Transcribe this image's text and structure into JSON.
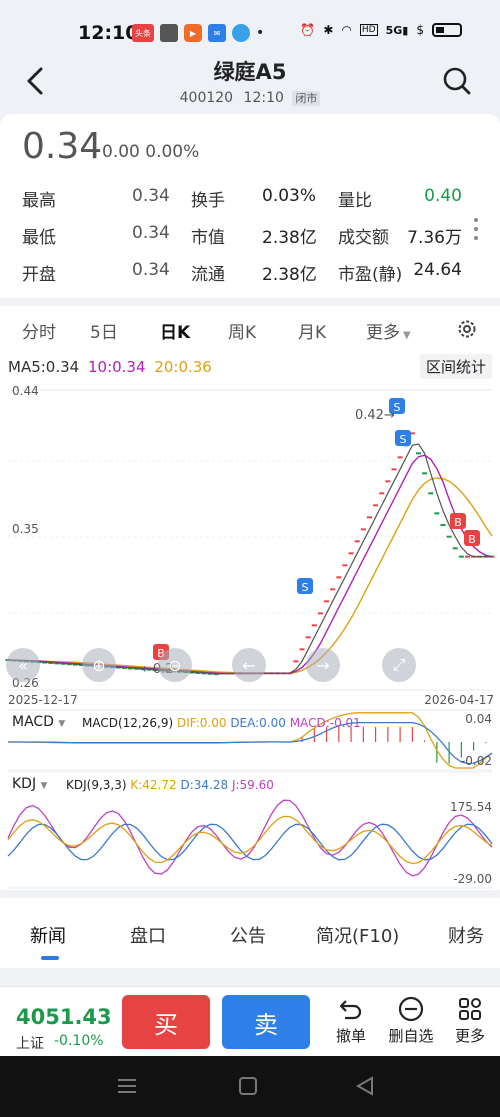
{
  "status": {
    "time": "12:10",
    "icons": [
      "toutiao-icon",
      "game-icon",
      "video-icon",
      "mail-icon",
      "app-icon"
    ],
    "right_icons": [
      "alarm-icon",
      "bluetooth-icon",
      "wifi-icon",
      "hd-icon",
      "5g-icon",
      "dollar-icon",
      "battery-icon"
    ]
  },
  "header": {
    "title": "绿庭A5",
    "code": "400120",
    "time": "12:10",
    "market_status": "闭市"
  },
  "quote": {
    "price": "0.34",
    "change": "0.00 0.00%",
    "stats": [
      [
        {
          "k": "最高",
          "v": "0.34"
        },
        {
          "k": "换手",
          "v": "0.03%"
        },
        {
          "k": "量比",
          "v": "0.40",
          "color": "#1a9a4a"
        }
      ],
      [
        {
          "k": "最低",
          "v": "0.34"
        },
        {
          "k": "市值",
          "v": "2.38亿"
        },
        {
          "k": "成交额",
          "v": "7.36万"
        }
      ],
      [
        {
          "k": "开盘",
          "v": "0.34"
        },
        {
          "k": "流通",
          "v": "2.38亿"
        },
        {
          "k": "市盈(静)",
          "v": "24.64"
        }
      ]
    ]
  },
  "tabs": [
    {
      "label": "分时",
      "active": false
    },
    {
      "label": "5日",
      "active": false
    },
    {
      "label": "日K",
      "active": true
    },
    {
      "label": "周K",
      "active": false
    },
    {
      "label": "月K",
      "active": false
    },
    {
      "label": "更多",
      "active": false
    }
  ],
  "chart": {
    "ma_legend": [
      {
        "text": "MA5:0.34",
        "color": "#333333"
      },
      {
        "text": "10:0.34",
        "color": "#b020b8"
      },
      {
        "text": "20:0.36",
        "color": "#e0a010"
      }
    ],
    "range_button": "区间统计",
    "y_ticks": [
      "0.44",
      "0.35",
      "0.26"
    ],
    "max_label": "0.42",
    "min_label": "0.2",
    "date_start": "2025-12-17",
    "date_end": "2026-04-17",
    "macd": {
      "name": "MACD",
      "params": "MACD(12,26,9)",
      "dif": "DIF:0.00",
      "dea": "DEA:0.00",
      "macd": "MACD:-0.01",
      "top": "0.04",
      "bottom": "-0.02"
    },
    "kdj": {
      "name": "KDJ",
      "params": "KDJ(9,3,3)",
      "k": "K:42.72",
      "d": "D:34.28",
      "j": "J:59.60",
      "top": "175.54",
      "bottom": "-29.00"
    },
    "colors": {
      "up": "#e84343",
      "down": "#1a9a4a",
      "ma5": "#333333",
      "ma10": "#b020b8",
      "ma20": "#e0a010",
      "signal_s": "#2f7fe8",
      "signal_b": "#e84343"
    }
  },
  "news_tabs": [
    {
      "label": "新闻",
      "active": true
    },
    {
      "label": "盘口",
      "active": false
    },
    {
      "label": "公告",
      "active": false
    },
    {
      "label": "简况(F10)",
      "active": false
    },
    {
      "label": "财务",
      "active": false
    }
  ],
  "bottom": {
    "index_value": "4051.43",
    "index_name": "上证",
    "index_change": "-0.10%",
    "buy_label": "买",
    "sell_label": "卖",
    "actions": [
      {
        "label": "撤单",
        "icon": "undo-icon"
      },
      {
        "label": "删自选",
        "icon": "minus-circle-icon"
      },
      {
        "label": "更多",
        "icon": "grid-icon"
      }
    ]
  }
}
